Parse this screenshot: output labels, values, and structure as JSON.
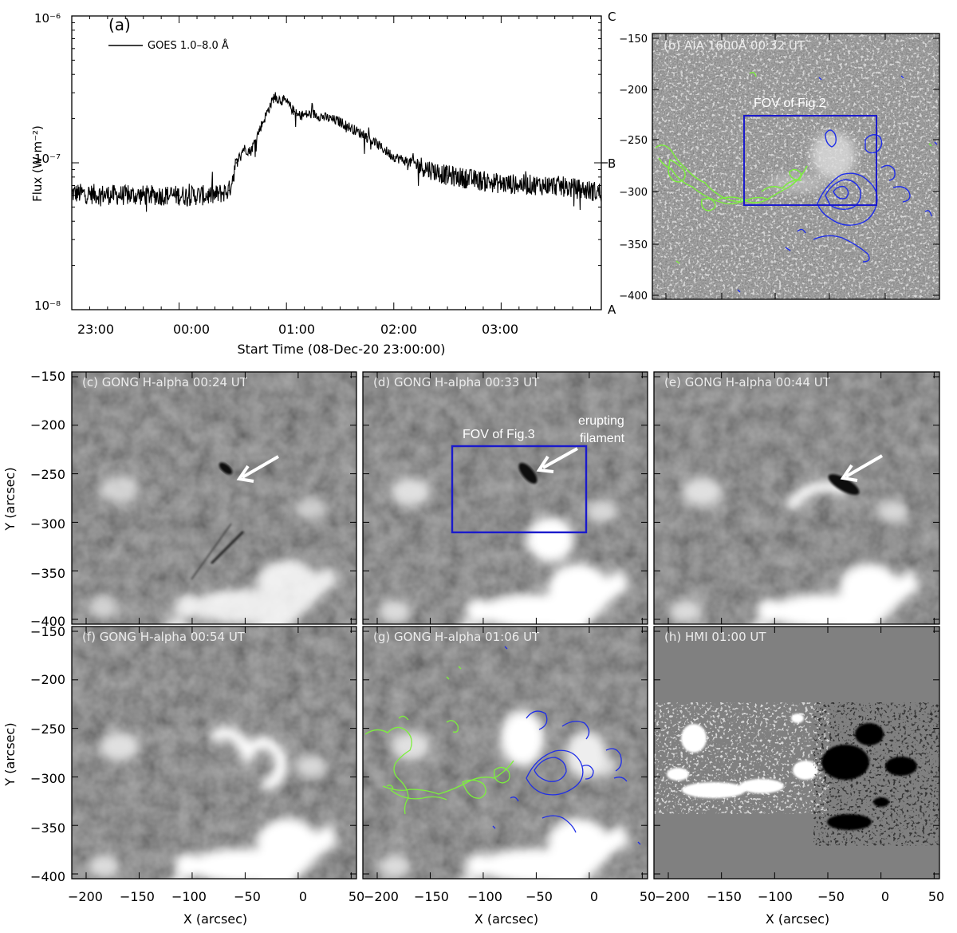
{
  "panel_a": {
    "label": "(a)",
    "legend": "GOES 1.0–8.0 Å",
    "ylabel": "Flux (W m⁻²)",
    "xlabel": "Start Time (08-Dec-20 23:00:00)",
    "y_ticks": [
      "10⁻⁶",
      "10⁻⁷",
      "10⁻⁸"
    ],
    "x_ticks": [
      "23:00",
      "00:00",
      "01:00",
      "02:00",
      "03:00"
    ],
    "class_labels": [
      "C",
      "B",
      "A"
    ]
  },
  "chart_data": {
    "type": "line",
    "title": "",
    "xlabel": "Start Time (08-Dec-20 23:00:00)",
    "ylabel": "Flux (W m⁻²)",
    "yscale": "log",
    "ylim": [
      1e-08,
      1e-06
    ],
    "xlim": [
      "2020-12-08T23:00",
      "2020-12-09T03:56"
    ],
    "series": [
      {
        "name": "GOES 1.0–8.0 Å",
        "x": [
          "2020-12-08T23:00",
          "2020-12-08T23:30",
          "2020-12-09T00:00",
          "2020-12-09T00:20",
          "2020-12-09T00:28",
          "2020-12-09T00:32",
          "2020-12-09T00:36",
          "2020-12-09T00:40",
          "2020-12-09T00:46",
          "2020-12-09T00:53",
          "2020-12-09T01:00",
          "2020-12-09T01:06",
          "2020-12-09T01:15",
          "2020-12-09T01:30",
          "2020-12-09T01:45",
          "2020-12-09T02:00",
          "2020-12-09T02:30",
          "2020-12-09T03:00",
          "2020-12-09T03:30",
          "2020-12-09T03:56"
        ],
        "y": [
          6.2e-08,
          6e-08,
          6e-08,
          6e-08,
          6.5e-08,
          1e-07,
          1.25e-07,
          1.2e-07,
          1.8e-07,
          2.8e-07,
          2.6e-07,
          2.1e-07,
          2.15e-07,
          1.9e-07,
          1.5e-07,
          1.1e-07,
          8.2e-08,
          7.2e-08,
          7e-08,
          6.3e-08
        ]
      }
    ],
    "legend_position": "top-left"
  },
  "panel_b": {
    "title": "(b) AIA 1600Å  00:32 UT",
    "fov_label": "FOV of Fig.2",
    "y_ticks": [
      "−150",
      "−200",
      "−250",
      "−300",
      "−350",
      "−400"
    ]
  },
  "panels": [
    {
      "title": "(c) GONG H-alpha 00:24 UT"
    },
    {
      "title": "(d) GONG H-alpha 00:33 UT"
    },
    {
      "title": "(e) GONG H-alpha 00:44 UT"
    },
    {
      "title": "(f) GONG H-alpha 00:54 UT"
    },
    {
      "title": "(g) GONG H-alpha  01:06 UT"
    },
    {
      "title": "(h) HMI  01:00 UT"
    }
  ],
  "panel_d": {
    "fov_label": "FOV of Fig.3",
    "filament_label": [
      "erupting",
      "filament"
    ]
  },
  "map_axes": {
    "ylabel": "Y (arcsec)",
    "xlabel": "X (arcsec)",
    "y_ticks": [
      "−150",
      "−200",
      "−250",
      "−300",
      "−350",
      "−400"
    ],
    "x_ticks": [
      "−200",
      "−150",
      "−100",
      "−50",
      "0",
      "50"
    ]
  },
  "colors": {
    "box": "#1a1acc",
    "positive_contour": "#7cf03c",
    "negative_contour": "#1f2ee8"
  }
}
